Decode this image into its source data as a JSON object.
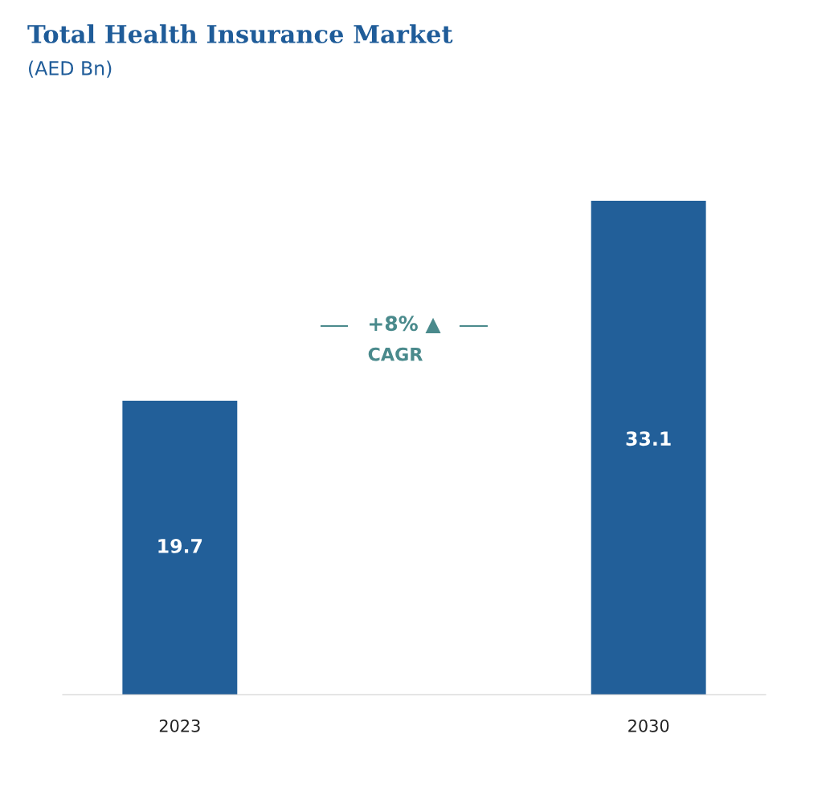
{
  "chart_data": {
    "type": "bar",
    "title": "Total Health Insurance Market",
    "subtitle": "(AED Bn)",
    "categories": [
      "2023",
      "2030"
    ],
    "values": [
      19.7,
      33.1
    ],
    "color": "#225f99",
    "data_labels": true,
    "annotations": [
      "+8% ▲",
      "CAGR"
    ]
  }
}
